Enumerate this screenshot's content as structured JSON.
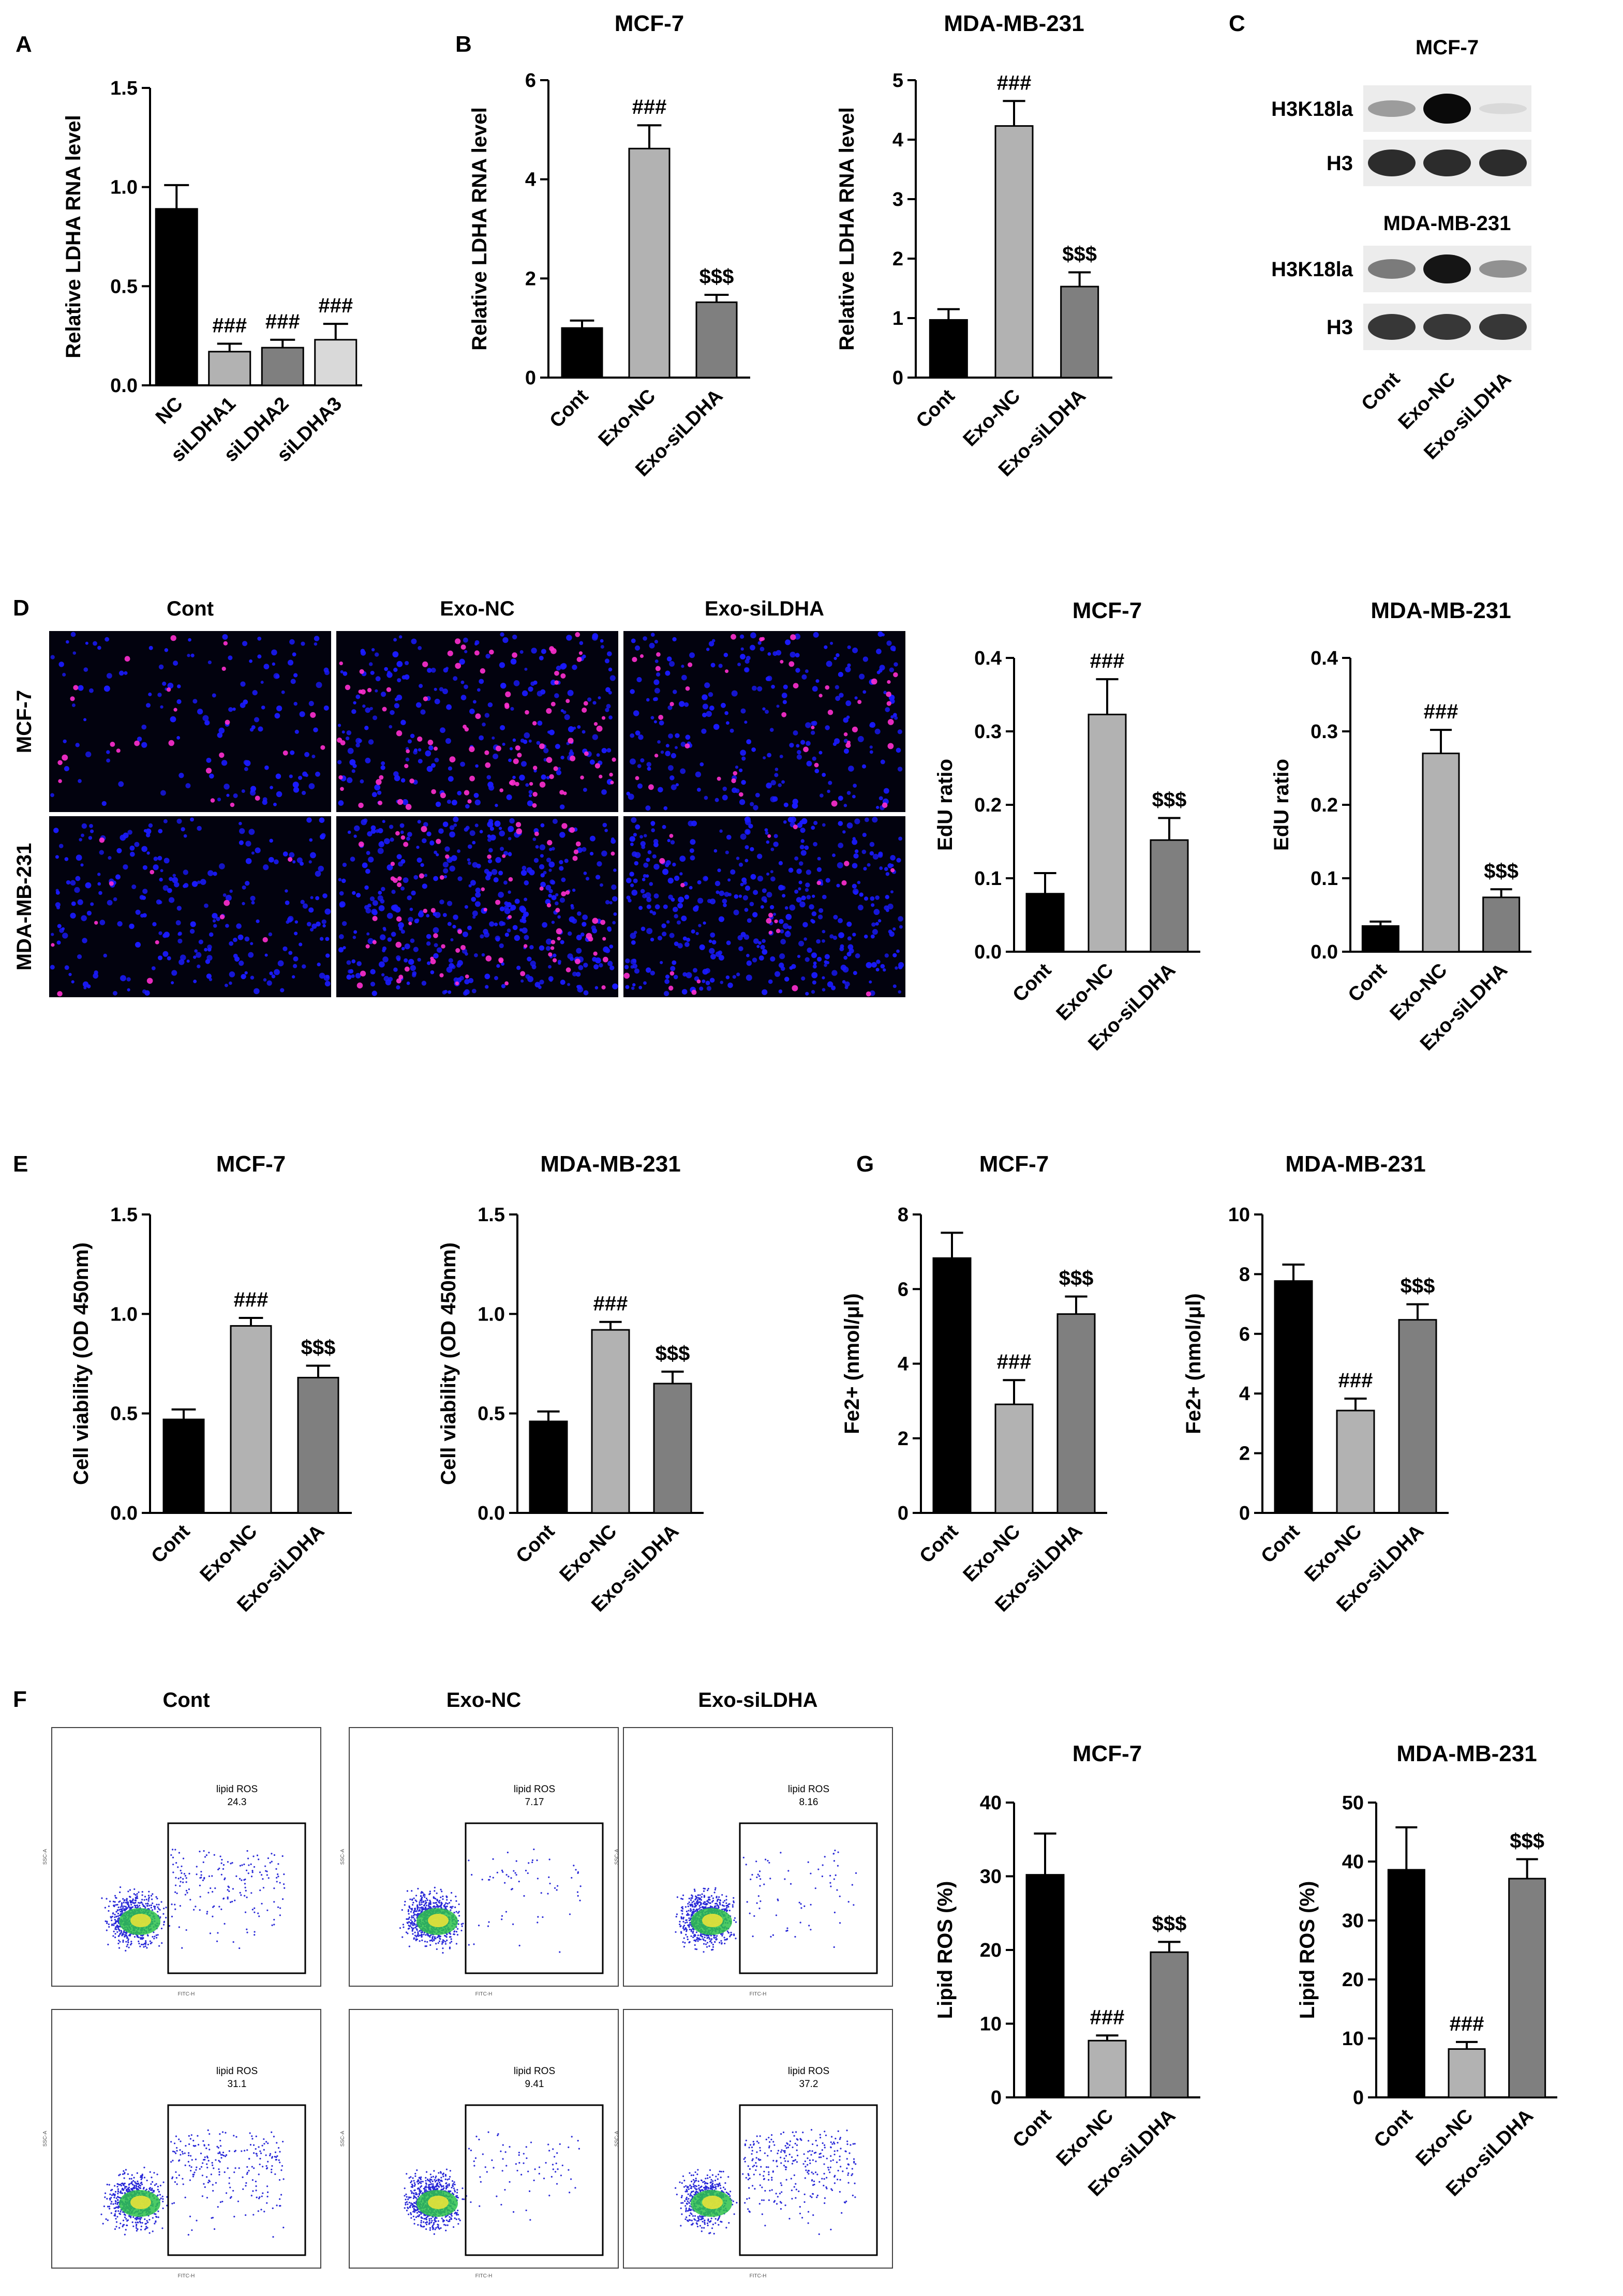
{
  "panel_labels": {
    "A": "A",
    "B": "B",
    "C": "C",
    "D": "D",
    "E": "E",
    "F": "F",
    "G": "G"
  },
  "colors": {
    "cont": "#000000",
    "exo_nc": "#b2b2b2",
    "exo_si": "#7f7f7f",
    "si_light": "#d9d9d9",
    "nuclei": "#1a1aff",
    "edu": "#ff2fd0"
  },
  "chart_data": [
    {
      "id": "A",
      "type": "bar",
      "title": "",
      "ylabel": "Relative LDHA RNA level",
      "ylim": [
        0,
        1.5
      ],
      "yticks": [
        "0.0",
        "0.5",
        "1.0",
        "1.5"
      ],
      "categories": [
        "NC",
        "siLDHA1",
        "siLDHA2",
        "siLDHA3"
      ],
      "values": [
        0.89,
        0.17,
        0.19,
        0.23
      ],
      "errors": [
        0.12,
        0.04,
        0.04,
        0.08
      ],
      "annotations": [
        "",
        "###",
        "###",
        "###"
      ]
    },
    {
      "id": "B1",
      "type": "bar",
      "title": "MCF-7",
      "ylabel": "Relative LDHA RNA level",
      "ylim": [
        0,
        6
      ],
      "yticks": [
        "0",
        "2",
        "4",
        "6"
      ],
      "categories": [
        "Cont",
        "Exo-NC",
        "Exo-siLDHA"
      ],
      "values": [
        1.0,
        4.62,
        1.52
      ],
      "errors": [
        0.15,
        0.47,
        0.15
      ],
      "annotations": [
        "",
        "###",
        "$$$"
      ]
    },
    {
      "id": "B2",
      "type": "bar",
      "title": "MDA-MB-231",
      "ylabel": "Relative LDHA RNA level",
      "ylim": [
        0,
        5
      ],
      "yticks": [
        "0",
        "1",
        "2",
        "3",
        "4",
        "5"
      ],
      "categories": [
        "Cont",
        "Exo-NC",
        "Exo-siLDHA"
      ],
      "values": [
        0.97,
        4.23,
        1.53
      ],
      "errors": [
        0.18,
        0.42,
        0.24
      ],
      "annotations": [
        "",
        "###",
        "$$$"
      ]
    },
    {
      "id": "D1",
      "type": "bar",
      "title": "MCF-7",
      "ylabel": "EdU ratio",
      "ylim": [
        0,
        0.4
      ],
      "yticks": [
        "0.0",
        "0.1",
        "0.2",
        "0.3",
        "0.4"
      ],
      "categories": [
        "Cont",
        "Exo-NC",
        "Exo-siLDHA"
      ],
      "values": [
        0.079,
        0.323,
        0.152
      ],
      "errors": [
        0.028,
        0.048,
        0.03
      ],
      "annotations": [
        "",
        "###",
        "$$$"
      ]
    },
    {
      "id": "D2",
      "type": "bar",
      "title": "MDA-MB-231",
      "ylabel": "EdU ratio",
      "ylim": [
        0,
        0.4
      ],
      "yticks": [
        "0.0",
        "0.1",
        "0.2",
        "0.3",
        "0.4"
      ],
      "categories": [
        "Cont",
        "Exo-NC",
        "Exo-siLDHA"
      ],
      "values": [
        0.035,
        0.27,
        0.074
      ],
      "errors": [
        0.006,
        0.032,
        0.011
      ],
      "annotations": [
        "",
        "###",
        "$$$"
      ]
    },
    {
      "id": "E1",
      "type": "bar",
      "title": "MCF-7",
      "ylabel": "Cell viability (OD 450nm)",
      "ylim": [
        0,
        1.5
      ],
      "yticks": [
        "0.0",
        "0.5",
        "1.0",
        "1.5"
      ],
      "categories": [
        "Cont",
        "Exo-NC",
        "Exo-siLDHA"
      ],
      "values": [
        0.47,
        0.94,
        0.68
      ],
      "errors": [
        0.05,
        0.04,
        0.06
      ],
      "annotations": [
        "",
        "###",
        "$$$"
      ]
    },
    {
      "id": "E2",
      "type": "bar",
      "title": "MDA-MB-231",
      "ylabel": "Cell viability (OD 450nm)",
      "ylim": [
        0,
        1.5
      ],
      "yticks": [
        "0.0",
        "0.5",
        "1.0",
        "1.5"
      ],
      "categories": [
        "Cont",
        "Exo-NC",
        "Exo-siLDHA"
      ],
      "values": [
        0.46,
        0.92,
        0.65
      ],
      "errors": [
        0.05,
        0.04,
        0.06
      ],
      "annotations": [
        "",
        "###",
        "$$$"
      ]
    },
    {
      "id": "G1",
      "type": "bar",
      "title": "MCF-7",
      "ylabel": "Fe2+ (nmol/μl)",
      "ylim": [
        0,
        8
      ],
      "yticks": [
        "0",
        "2",
        "4",
        "6",
        "8"
      ],
      "categories": [
        "Cont",
        "Exo-NC",
        "Exo-siLDHA"
      ],
      "values": [
        6.83,
        2.91,
        5.33
      ],
      "errors": [
        0.68,
        0.65,
        0.47
      ],
      "annotations": [
        "",
        "###",
        "$$$"
      ]
    },
    {
      "id": "G2",
      "type": "bar",
      "title": "MDA-MB-231",
      "ylabel": "Fe2+ (nmol/μl)",
      "ylim": [
        0,
        10
      ],
      "yticks": [
        "0",
        "2",
        "4",
        "6",
        "8",
        "10"
      ],
      "categories": [
        "Cont",
        "Exo-NC",
        "Exo-siLDHA"
      ],
      "values": [
        7.77,
        3.43,
        6.47
      ],
      "errors": [
        0.55,
        0.4,
        0.52
      ],
      "annotations": [
        "",
        "###",
        "$$$"
      ]
    },
    {
      "id": "F1",
      "type": "bar",
      "title": "MCF-7",
      "ylabel": "Lipid ROS (%)",
      "ylim": [
        0,
        40
      ],
      "yticks": [
        "0",
        "10",
        "20",
        "30",
        "40"
      ],
      "categories": [
        "Cont",
        "Exo-NC",
        "Exo-siLDHA"
      ],
      "values": [
        30.2,
        7.7,
        19.7
      ],
      "errors": [
        5.6,
        0.7,
        1.4
      ],
      "annotations": [
        "",
        "###",
        "$$$"
      ]
    },
    {
      "id": "F2",
      "type": "bar",
      "title": "MDA-MB-231",
      "ylabel": "Lipid ROS (%)",
      "ylim": [
        0,
        50
      ],
      "yticks": [
        "0",
        "10",
        "20",
        "30",
        "40",
        "50"
      ],
      "categories": [
        "Cont",
        "Exo-NC",
        "Exo-siLDHA"
      ],
      "values": [
        38.6,
        8.2,
        37.1
      ],
      "errors": [
        7.2,
        1.2,
        3.3
      ],
      "annotations": [
        "",
        "###",
        "$$$"
      ]
    }
  ],
  "western_blot": {
    "groups": [
      {
        "title": "MCF-7",
        "rows": [
          {
            "label": "H3K18la",
            "intensity": [
              0.35,
              1.0,
              0.08
            ]
          },
          {
            "label": "H3",
            "intensity": [
              0.85,
              0.85,
              0.85
            ]
          }
        ]
      },
      {
        "title": "MDA-MB-231",
        "rows": [
          {
            "label": "H3K18la",
            "intensity": [
              0.5,
              0.95,
              0.4
            ]
          },
          {
            "label": "H3",
            "intensity": [
              0.8,
              0.8,
              0.8
            ]
          }
        ]
      }
    ],
    "lanes": [
      "Cont",
      "Exo-NC",
      "Exo-siLDHA"
    ]
  },
  "microscopy": {
    "columns": [
      "Cont",
      "Exo-NC",
      "Exo-siLDHA"
    ],
    "rows": [
      "MCF-7",
      "MDA-MB-231"
    ],
    "edu_positive_level": [
      [
        0.08,
        0.32,
        0.15
      ],
      [
        0.04,
        0.27,
        0.07
      ]
    ]
  },
  "flow": {
    "columns": [
      "Cont",
      "Exo-NC",
      "Exo-siLDHA"
    ],
    "gate_name": "lipid ROS",
    "values": [
      [
        "24.3",
        "7.17",
        "8.16"
      ],
      [
        "31.1",
        "9.41",
        "37.2"
      ]
    ],
    "x_axis": "FITC-H",
    "y_axis": "SSC-A"
  }
}
